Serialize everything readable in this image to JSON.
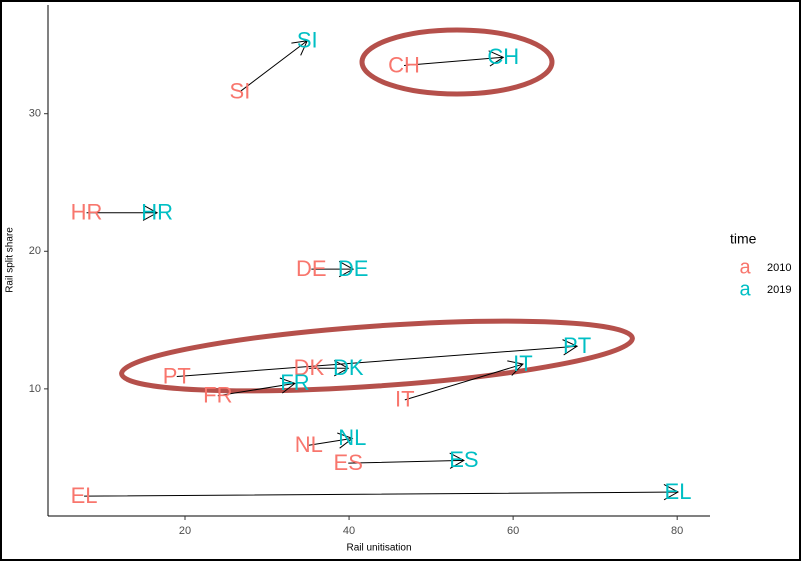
{
  "chart_data": {
    "type": "scatter",
    "xlabel": "Rail unitisation",
    "ylabel": "Rail split share",
    "labels": [
      "SI",
      "CH",
      "HR",
      "DE",
      "DK",
      "PT",
      "FR",
      "IT",
      "NL",
      "ES",
      "EL"
    ],
    "series": [
      {
        "name": "2010",
        "color": "#f8766d",
        "x": [
          26.7,
          46.7,
          8.0,
          35.4,
          35.1,
          19.0,
          24.0,
          46.8,
          35.1,
          39.9,
          7.7
        ],
        "values": [
          31.6,
          33.5,
          22.8,
          18.7,
          11.5,
          10.9,
          9.5,
          9.2,
          5.9,
          4.6,
          2.2
        ]
      },
      {
        "name": "2019",
        "color": "#00bfc4",
        "x": [
          34.9,
          58.8,
          16.6,
          40.5,
          39.9,
          67.8,
          33.4,
          61.2,
          40.4,
          54.0,
          80.1
        ],
        "values": [
          35.3,
          34.1,
          22.8,
          18.7,
          11.5,
          13.1,
          10.4,
          11.8,
          6.4,
          4.8,
          2.5
        ]
      }
    ],
    "legend_title": "time",
    "legend_symbol": "a",
    "xlim": [
      3.3,
      84.0
    ],
    "ylim": [
      0.76,
      37.9
    ],
    "xticks": [
      20,
      40,
      60,
      80
    ],
    "yticks": [
      10,
      20,
      30
    ]
  }
}
